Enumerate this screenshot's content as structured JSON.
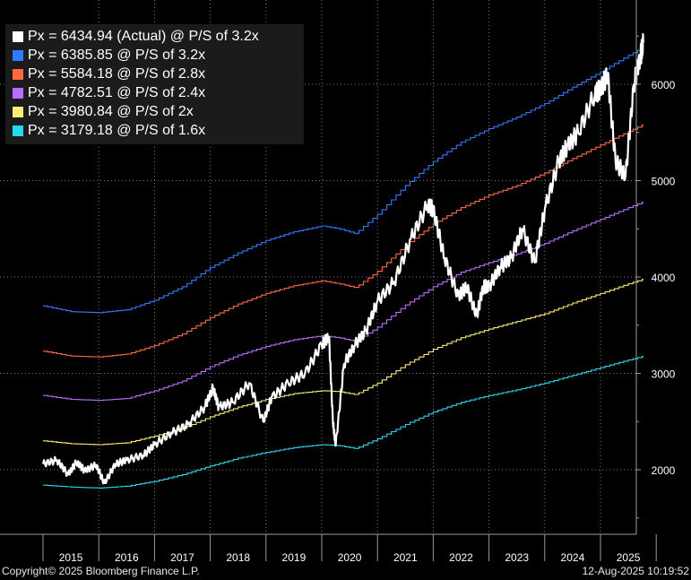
{
  "legend": [
    {
      "label": "Px = 6434.94 (Actual) @ P/S of 3.2x",
      "color": "#ffffff"
    },
    {
      "label": "Px = 6385.85 @ P/S of 3.2x",
      "color": "#2f7bff"
    },
    {
      "label": "Px = 5584.18 @ P/S of 2.8x",
      "color": "#ff6a3d"
    },
    {
      "label": "Px = 4782.51 @ P/S of 2.4x",
      "color": "#b96cff"
    },
    {
      "label": "Px = 3980.84 @ P/S of 2x",
      "color": "#ffec6e"
    },
    {
      "label": "Px = 3179.18 @ P/S of 1.6x",
      "color": "#26d9ef"
    }
  ],
  "footer": {
    "copyright": "Copyright© 2025 Bloomberg Finance L.P.",
    "timestamp": "12-Aug-2025 10:19:52"
  },
  "chart_data": {
    "type": "line",
    "x_labels": [
      "2015",
      "2016",
      "2017",
      "2018",
      "2019",
      "2020",
      "2021",
      "2022",
      "2023",
      "2024",
      "2025"
    ],
    "yticks": [
      2000,
      3000,
      4000,
      5000,
      6000
    ],
    "ylim": [
      1500,
      6550
    ],
    "xlim": [
      2015.0,
      2026.0
    ],
    "grid": true,
    "legend_position": "top-left",
    "series": [
      {
        "name": "Px = 6434.94 (Actual) @ P/S of 3.2x",
        "color": "#ffffff",
        "x": [
          2015.0,
          2015.25,
          2015.45,
          2015.6,
          2015.75,
          2015.95,
          2016.1,
          2016.3,
          2016.5,
          2016.8,
          2017.0,
          2017.3,
          2017.6,
          2017.9,
          2018.05,
          2018.15,
          2018.4,
          2018.7,
          2018.95,
          2019.1,
          2019.4,
          2019.7,
          2020.0,
          2020.13,
          2020.2,
          2020.25,
          2020.4,
          2020.6,
          2020.8,
          2021.0,
          2021.3,
          2021.6,
          2021.9,
          2022.0,
          2022.2,
          2022.45,
          2022.6,
          2022.78,
          2022.9,
          2023.0,
          2023.2,
          2023.4,
          2023.6,
          2023.82,
          2024.0,
          2024.25,
          2024.4,
          2024.6,
          2024.9,
          2025.0,
          2025.13,
          2025.27,
          2025.45,
          2025.6,
          2025.72,
          2025.77
        ],
        "y": [
          2060,
          2100,
          1950,
          2080,
          1990,
          2050,
          1860,
          2060,
          2100,
          2150,
          2260,
          2380,
          2470,
          2650,
          2850,
          2650,
          2700,
          2900,
          2500,
          2750,
          2900,
          3000,
          3300,
          3380,
          2500,
          2250,
          3100,
          3300,
          3450,
          3750,
          3950,
          4400,
          4750,
          4700,
          4200,
          3800,
          3900,
          3600,
          3900,
          3900,
          4100,
          4200,
          4500,
          4150,
          4700,
          5200,
          5350,
          5500,
          5900,
          5950,
          6100,
          5200,
          5050,
          6000,
          6300,
          6434.94
        ]
      },
      {
        "name": "Px = 6385.85 @ P/S of 3.2x",
        "color": "#2f7bff",
        "x": [
          2015.0,
          2015.5,
          2016.0,
          2016.5,
          2017.0,
          2017.5,
          2018.0,
          2018.5,
          2019.0,
          2019.5,
          2020.0,
          2020.3,
          2020.6,
          2021.0,
          2021.5,
          2022.0,
          2022.5,
          2023.0,
          2023.5,
          2024.0,
          2024.5,
          2025.0,
          2025.5,
          2025.77
        ],
        "y": [
          3700,
          3640,
          3630,
          3660,
          3760,
          3900,
          4100,
          4250,
          4380,
          4470,
          4530,
          4500,
          4450,
          4650,
          4950,
          5200,
          5400,
          5540,
          5660,
          5800,
          5970,
          6130,
          6300,
          6385.85
        ]
      },
      {
        "name": "Px = 5584.18 @ P/S of 2.8x",
        "color": "#ff6a3d",
        "x": [
          2015.0,
          2015.5,
          2016.0,
          2016.5,
          2017.0,
          2017.5,
          2018.0,
          2018.5,
          2019.0,
          2019.5,
          2020.0,
          2020.3,
          2020.6,
          2021.0,
          2021.5,
          2022.0,
          2022.5,
          2023.0,
          2023.5,
          2024.0,
          2024.5,
          2025.0,
          2025.5,
          2025.77
        ],
        "y": [
          3230,
          3180,
          3170,
          3200,
          3290,
          3410,
          3580,
          3720,
          3830,
          3910,
          3960,
          3930,
          3890,
          4060,
          4330,
          4550,
          4720,
          4850,
          4950,
          5080,
          5230,
          5370,
          5510,
          5584.18
        ]
      },
      {
        "name": "Px = 4782.51 @ P/S of 2.4x",
        "color": "#b96cff",
        "x": [
          2015.0,
          2015.5,
          2016.0,
          2016.5,
          2017.0,
          2017.5,
          2018.0,
          2018.5,
          2019.0,
          2019.5,
          2020.0,
          2020.3,
          2020.6,
          2021.0,
          2021.5,
          2022.0,
          2022.5,
          2023.0,
          2023.5,
          2024.0,
          2024.5,
          2025.0,
          2025.5,
          2025.77
        ],
        "y": [
          2770,
          2730,
          2720,
          2740,
          2820,
          2920,
          3070,
          3190,
          3280,
          3350,
          3390,
          3370,
          3330,
          3480,
          3710,
          3900,
          4050,
          4150,
          4240,
          4350,
          4480,
          4600,
          4720,
          4782.51
        ]
      },
      {
        "name": "Px = 3980.84 @ P/S of 2x",
        "color": "#ffec6e",
        "x": [
          2015.0,
          2015.5,
          2016.0,
          2016.5,
          2017.0,
          2017.5,
          2018.0,
          2018.5,
          2019.0,
          2019.5,
          2020.0,
          2020.3,
          2020.6,
          2021.0,
          2021.5,
          2022.0,
          2022.5,
          2023.0,
          2023.5,
          2024.0,
          2024.5,
          2025.0,
          2025.5,
          2025.77
        ],
        "y": [
          2300,
          2270,
          2260,
          2280,
          2350,
          2430,
          2550,
          2650,
          2730,
          2790,
          2820,
          2810,
          2780,
          2900,
          3090,
          3250,
          3370,
          3460,
          3540,
          3620,
          3730,
          3830,
          3930,
          3980.84
        ]
      },
      {
        "name": "Px = 3179.18 @ P/S of 1.6x",
        "color": "#26d9ef",
        "x": [
          2015.0,
          2015.5,
          2016.0,
          2016.5,
          2017.0,
          2017.5,
          2018.0,
          2018.5,
          2019.0,
          2019.5,
          2020.0,
          2020.3,
          2020.6,
          2021.0,
          2021.5,
          2022.0,
          2022.5,
          2023.0,
          2023.5,
          2024.0,
          2024.5,
          2025.0,
          2025.5,
          2025.77
        ],
        "y": [
          1840,
          1820,
          1810,
          1830,
          1880,
          1950,
          2040,
          2120,
          2180,
          2230,
          2260,
          2250,
          2220,
          2320,
          2470,
          2600,
          2700,
          2770,
          2830,
          2900,
          2980,
          3060,
          3140,
          3179.18
        ]
      }
    ]
  }
}
